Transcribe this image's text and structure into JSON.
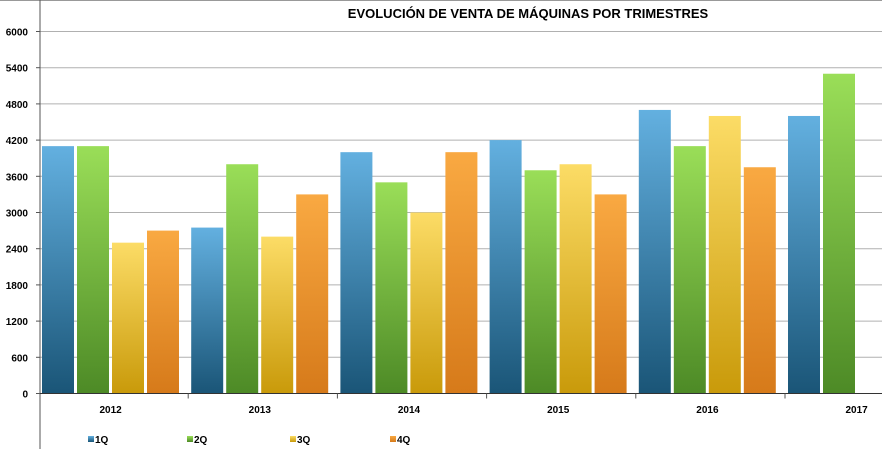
{
  "chart_data": {
    "type": "bar",
    "title": "EVOLUCIÓN DE VENTA DE MÁQUINAS POR TRIMESTRES",
    "xlabel": "",
    "ylabel": "",
    "categories": [
      "2012",
      "2013",
      "2014",
      "2015",
      "2016",
      "2017"
    ],
    "ylim": [
      0,
      6000
    ],
    "yticks": [
      0,
      600,
      1200,
      1800,
      2400,
      3000,
      3600,
      4200,
      4800,
      5400,
      6000
    ],
    "grid": true,
    "legend_position": "bottom",
    "series": [
      {
        "name": "1Q",
        "values": [
          4100,
          2750,
          4000,
          4200,
          4700,
          4600
        ],
        "color_top": "#63b0e0",
        "color_bottom": "#1a5577"
      },
      {
        "name": "2Q",
        "values": [
          4100,
          3800,
          3500,
          3700,
          4100,
          5300
        ],
        "color_top": "#9ade58",
        "color_bottom": "#4d8a26"
      },
      {
        "name": "3Q",
        "values": [
          2500,
          2600,
          3000,
          3800,
          4600,
          null
        ],
        "color_top": "#fcdc66",
        "color_bottom": "#c99a0a"
      },
      {
        "name": "4Q",
        "values": [
          2700,
          3300,
          4000,
          3300,
          3750,
          null
        ],
        "color_top": "#f9a942",
        "color_bottom": "#d67a1a"
      }
    ]
  }
}
